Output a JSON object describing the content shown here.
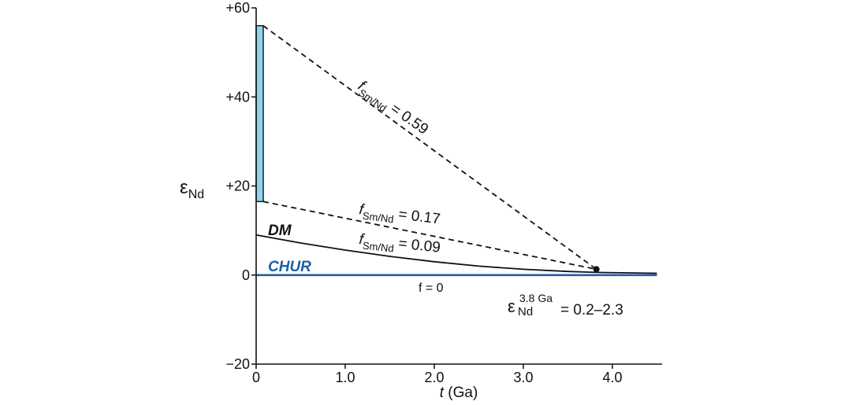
{
  "colors": {
    "chur": "#1f5fa6",
    "bar": "#8fd3f0",
    "ink": "#111111"
  },
  "chart_data": {
    "type": "line",
    "xlabel_t": "t",
    "xlabel_unit": "(Ga)",
    "ylabel_main": "ε",
    "ylabel_sub": "Nd",
    "xlim": [
      0,
      4.5
    ],
    "ylim": [
      -20,
      60
    ],
    "x_ticks": [
      {
        "value": 0,
        "label": "0"
      },
      {
        "value": 1,
        "label": "1.0"
      },
      {
        "value": 2,
        "label": "2.0"
      },
      {
        "value": 3,
        "label": "3.0"
      },
      {
        "value": 4,
        "label": "4.0"
      }
    ],
    "y_ticks": [
      {
        "value": 60,
        "label": "+60"
      },
      {
        "value": 40,
        "label": "+40"
      },
      {
        "value": 20,
        "label": "+20"
      },
      {
        "value": 0,
        "label": "0"
      },
      {
        "value": -20,
        "label": "−20"
      }
    ],
    "range_bar": {
      "x": 0.08,
      "y_min": 16.5,
      "y_max": 56
    },
    "converge_point": {
      "x": 3.82,
      "y": 1.3
    },
    "series": [
      {
        "name": "CHUR",
        "style": "solid",
        "points": [
          [
            0,
            0
          ],
          [
            4.5,
            0
          ]
        ]
      },
      {
        "name": "DM",
        "style": "solid",
        "points": [
          [
            0,
            9
          ],
          [
            0.5,
            7.2
          ],
          [
            1,
            5.6
          ],
          [
            1.5,
            4.2
          ],
          [
            2,
            3.0
          ],
          [
            2.5,
            2.0
          ],
          [
            3,
            1.3
          ],
          [
            3.5,
            0.8
          ],
          [
            3.82,
            0.6
          ],
          [
            4.5,
            0.4
          ]
        ]
      },
      {
        "style": "dashed",
        "points": [
          [
            0.08,
            56
          ],
          [
            3.82,
            1.3
          ]
        ]
      },
      {
        "style": "dashed",
        "points": [
          [
            0.08,
            16.5
          ],
          [
            3.82,
            1.3
          ]
        ]
      }
    ],
    "annotations": {
      "f059": {
        "f": "f",
        "sub": "Sm/Nd",
        "val": " = 0.59"
      },
      "f017": {
        "f": "f",
        "sub": "Sm/Nd",
        "val": " = 0.17"
      },
      "f009": {
        "f": "f",
        "sub": "Sm/Nd",
        "val": " = 0.09"
      },
      "dm": "DM",
      "chur": "CHUR",
      "f0": "f = 0",
      "eps_main": "ε",
      "eps_sup": "3.8 Ga",
      "eps_sub": "Nd",
      "eps_val": "= 0.2–2.3"
    }
  }
}
